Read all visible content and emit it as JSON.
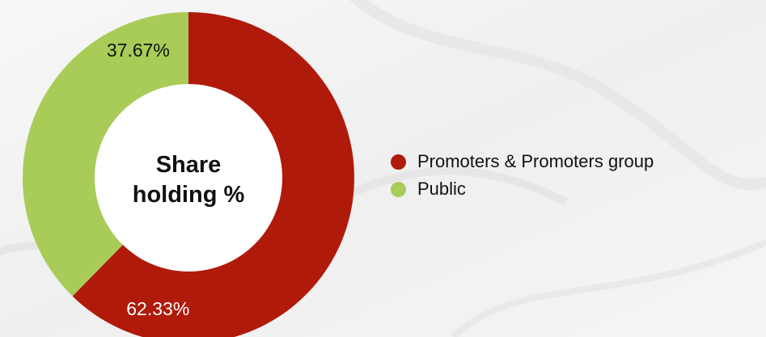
{
  "chart_data": {
    "type": "pie",
    "title": "Share holding %",
    "title_lines": [
      "Share",
      "holding %"
    ],
    "series": [
      {
        "name": "Promoters & Promoters group",
        "value": 62.33,
        "label": "62.33%",
        "color": "#b01a0b"
      },
      {
        "name": "Public",
        "value": 37.67,
        "label": "37.67%",
        "color": "#a9cc58"
      }
    ],
    "legend_position": "right",
    "donut": true
  }
}
